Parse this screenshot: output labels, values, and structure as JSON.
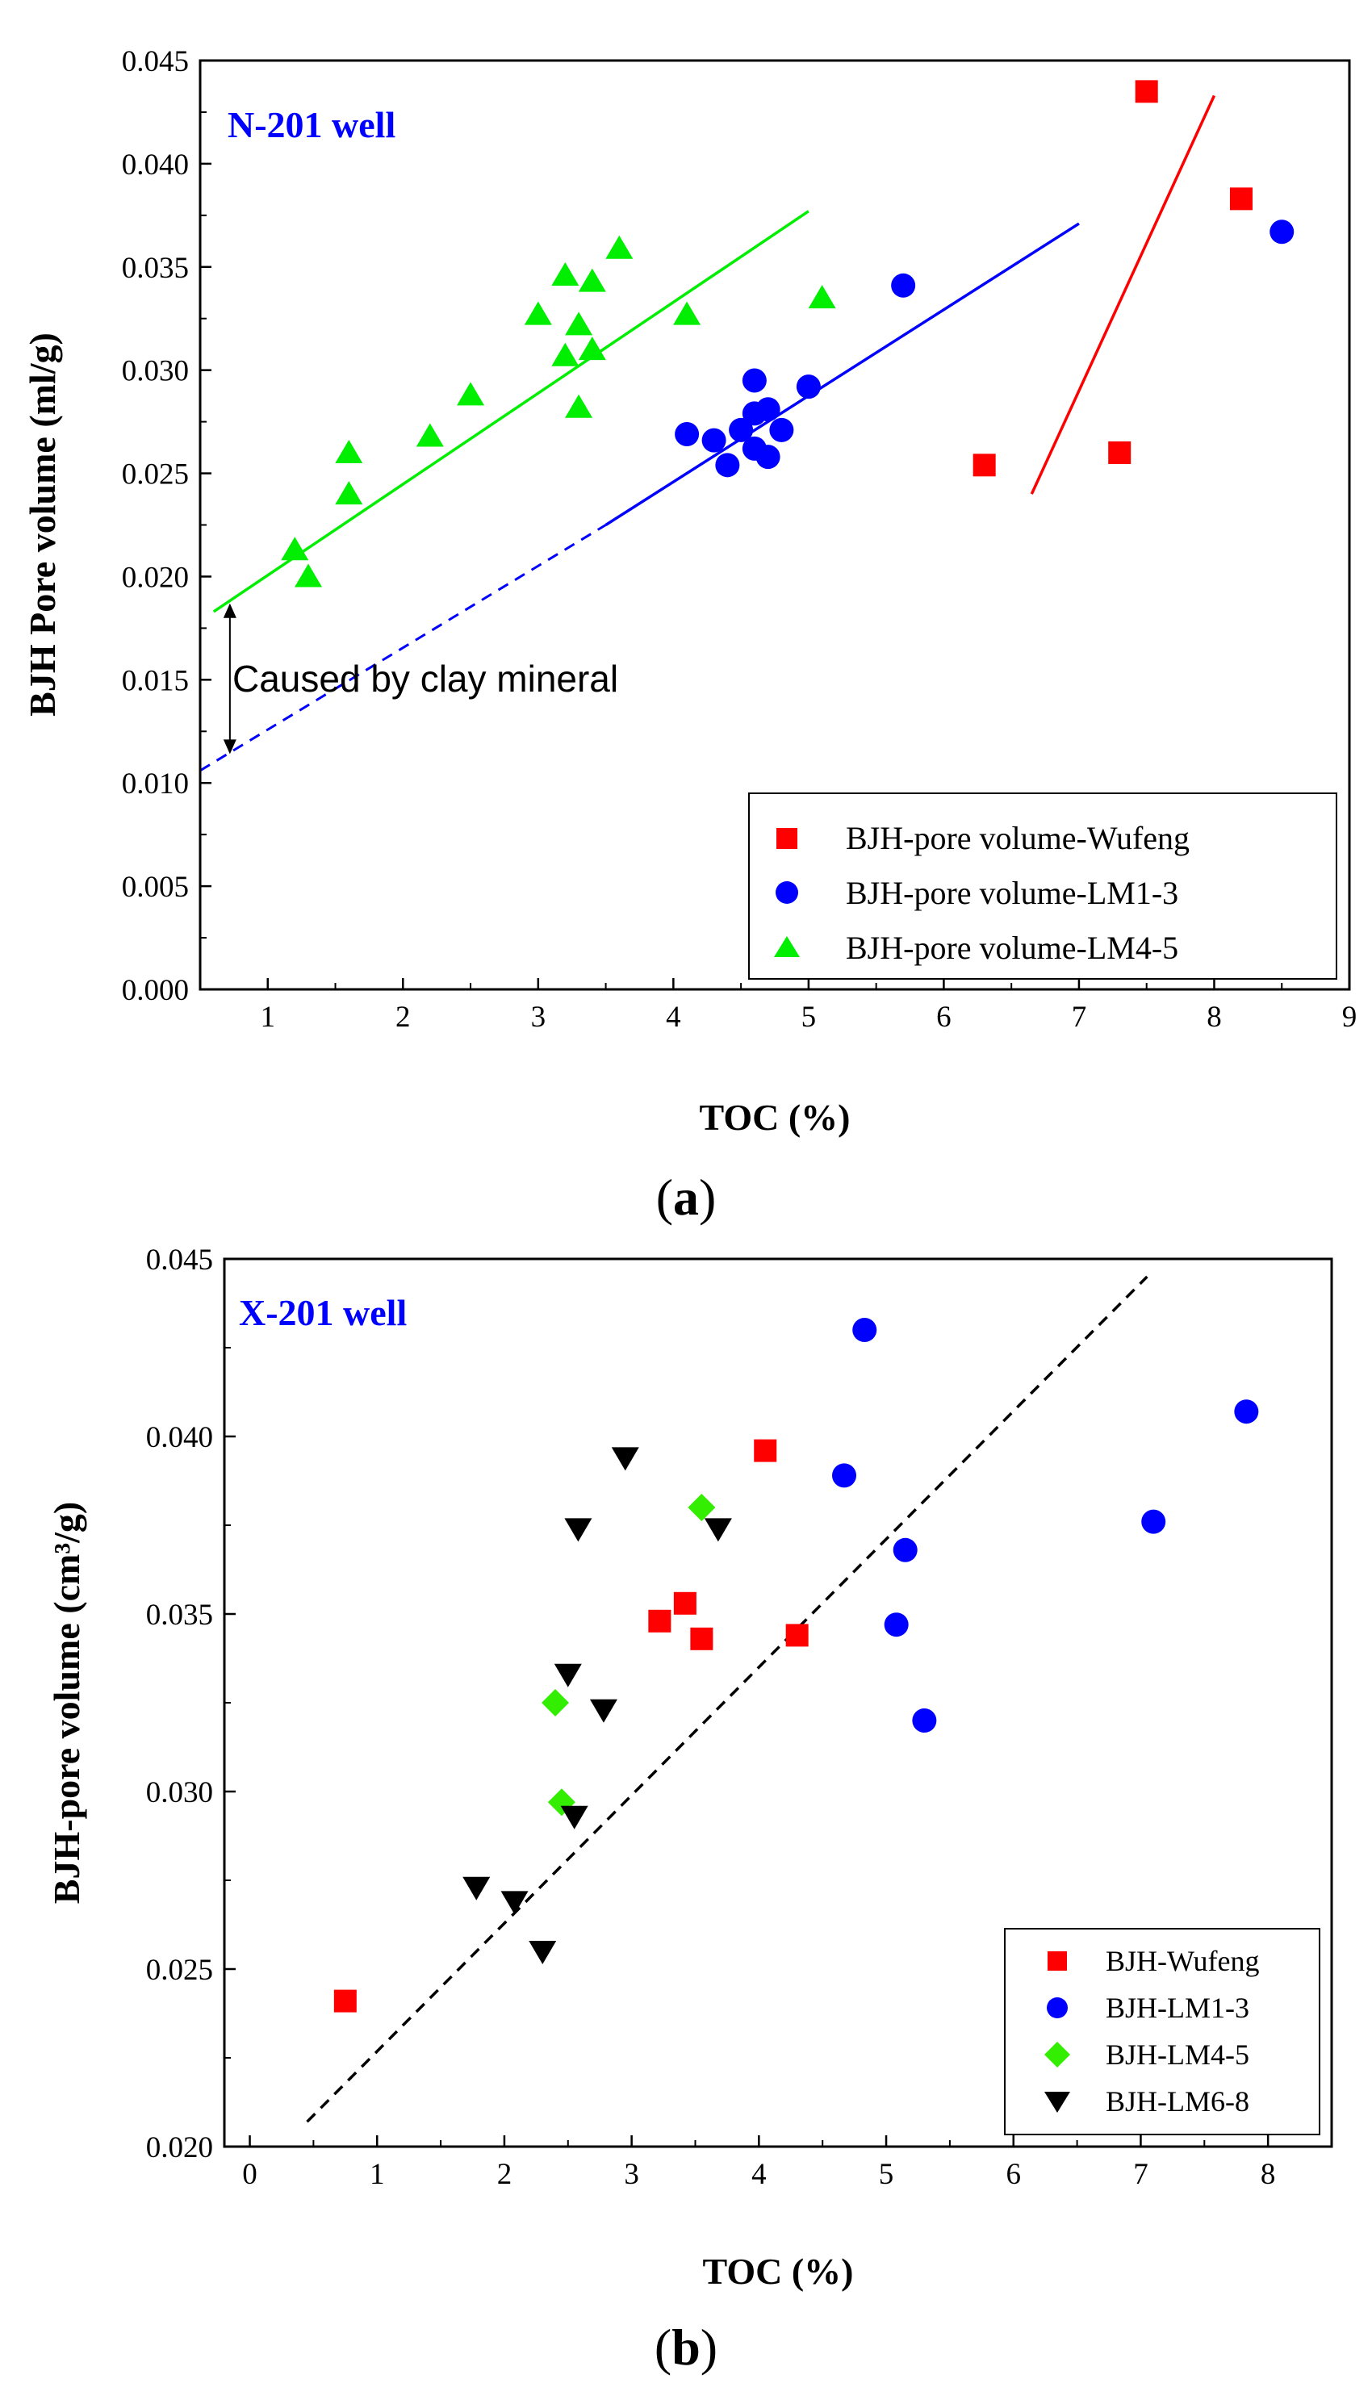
{
  "colors": {
    "wufeng": "#ff0000",
    "lm13": "#0000ff",
    "lm45": "#00ee00",
    "lm45b": "#33ee00",
    "lm68": "#000000",
    "well_label": "#0000ff"
  },
  "chart_data": [
    {
      "type": "scatter",
      "panel_label": "(a)",
      "well_label": "N-201 well",
      "xlabel": "TOC (%)",
      "ylabel": "BJH Pore volume (ml/g)",
      "xlim": [
        0.5,
        9
      ],
      "ylim": [
        0,
        0.045
      ],
      "xticks": [
        "1",
        "2",
        "3",
        "4",
        "5",
        "6",
        "7",
        "8",
        "9"
      ],
      "yticks": [
        "0.000",
        "0.005",
        "0.010",
        "0.015",
        "0.020",
        "0.025",
        "0.030",
        "0.035",
        "0.040",
        "0.045"
      ],
      "legend_position": "bottom-right",
      "series": [
        {
          "name": "BJH-pore volume-Wufeng",
          "marker": "square",
          "color": "#ff0000",
          "points": [
            [
              7.5,
              0.0435
            ],
            [
              8.2,
              0.0383
            ],
            [
              6.3,
              0.0254
            ],
            [
              7.3,
              0.026
            ]
          ],
          "fit": [
            [
              6.65,
              0.024
            ],
            [
              8.0,
              0.0433
            ]
          ]
        },
        {
          "name": "BJH-pore volume-LM1-3",
          "marker": "circle",
          "color": "#0000ff",
          "points": [
            [
              4.1,
              0.0269
            ],
            [
              4.3,
              0.0266
            ],
            [
              4.4,
              0.0254
            ],
            [
              4.5,
              0.0271
            ],
            [
              4.6,
              0.0295
            ],
            [
              4.6,
              0.0279
            ],
            [
              4.6,
              0.0262
            ],
            [
              4.7,
              0.0281
            ],
            [
              4.7,
              0.0258
            ],
            [
              4.8,
              0.0271
            ],
            [
              5.0,
              0.0292
            ],
            [
              5.7,
              0.0341
            ],
            [
              8.5,
              0.0367
            ]
          ],
          "fit": [
            [
              3.5,
              0.0225
            ],
            [
              7.0,
              0.0371
            ]
          ],
          "fit_extension": [
            [
              0.5,
              0.0106
            ],
            [
              3.5,
              0.0225
            ]
          ]
        },
        {
          "name": "BJH-pore volume-LM4-5",
          "marker": "triangle",
          "color": "#00ee00",
          "points": [
            [
              1.2,
              0.0213
            ],
            [
              1.3,
              0.02
            ],
            [
              1.6,
              0.026
            ],
            [
              1.6,
              0.024
            ],
            [
              2.2,
              0.0268
            ],
            [
              2.5,
              0.0288
            ],
            [
              3.0,
              0.0327
            ],
            [
              3.2,
              0.0346
            ],
            [
              3.2,
              0.0307
            ],
            [
              3.3,
              0.0322
            ],
            [
              3.3,
              0.0282
            ],
            [
              3.4,
              0.0343
            ],
            [
              3.4,
              0.031
            ],
            [
              3.6,
              0.0359
            ],
            [
              4.1,
              0.0327
            ],
            [
              5.1,
              0.0335
            ]
          ],
          "fit": [
            [
              0.6,
              0.0183
            ],
            [
              5.0,
              0.0377
            ]
          ]
        }
      ],
      "annotation": {
        "text": "Caused by clay mineral",
        "x": 0.72,
        "y_from": 0.0187,
        "y_to": 0.0114
      }
    },
    {
      "type": "scatter",
      "panel_label": "(b)",
      "well_label": "X-201 well",
      "xlabel": "TOC (%)",
      "ylabel": "BJH-pore volume (cm³/g)",
      "xlim": [
        -0.2,
        8.5
      ],
      "ylim": [
        0.02,
        0.045
      ],
      "xticks": [
        "0",
        "1",
        "2",
        "3",
        "4",
        "5",
        "6",
        "7",
        "8"
      ],
      "yticks": [
        "0.020",
        "0.025",
        "0.030",
        "0.035",
        "0.040",
        "0.045"
      ],
      "legend_position": "bottom-right",
      "series": [
        {
          "name": "BJH-Wufeng",
          "marker": "square",
          "color": "#ff0000",
          "points": [
            [
              0.75,
              0.0241
            ],
            [
              3.22,
              0.0348
            ],
            [
              3.42,
              0.0353
            ],
            [
              3.55,
              0.0343
            ],
            [
              4.05,
              0.0396
            ],
            [
              4.3,
              0.0344
            ]
          ]
        },
        {
          "name": "BJH-LM1-3",
          "marker": "circle",
          "color": "#0000ff",
          "points": [
            [
              4.83,
              0.043
            ],
            [
              4.67,
              0.0389
            ],
            [
              5.15,
              0.0368
            ],
            [
              5.08,
              0.0347
            ],
            [
              5.3,
              0.032
            ],
            [
              7.1,
              0.0376
            ],
            [
              7.83,
              0.0407
            ]
          ]
        },
        {
          "name": "BJH-LM4-5",
          "marker": "diamond",
          "color": "#33ee00",
          "points": [
            [
              3.55,
              0.038
            ],
            [
              2.4,
              0.0325
            ],
            [
              2.45,
              0.0297
            ]
          ]
        },
        {
          "name": "BJH-LM6-8",
          "marker": "triangle-down",
          "color": "#000000",
          "points": [
            [
              2.95,
              0.0394
            ],
            [
              2.58,
              0.0374
            ],
            [
              3.68,
              0.0374
            ],
            [
              2.5,
              0.0333
            ],
            [
              2.78,
              0.0323
            ],
            [
              2.55,
              0.0293
            ],
            [
              1.78,
              0.0273
            ],
            [
              2.08,
              0.0269
            ],
            [
              2.3,
              0.0255
            ]
          ]
        }
      ],
      "trend": {
        "style": "dashed",
        "color": "#000000",
        "points": [
          [
            0.45,
            0.0207
          ],
          [
            7.05,
            0.0445
          ]
        ]
      }
    }
  ]
}
